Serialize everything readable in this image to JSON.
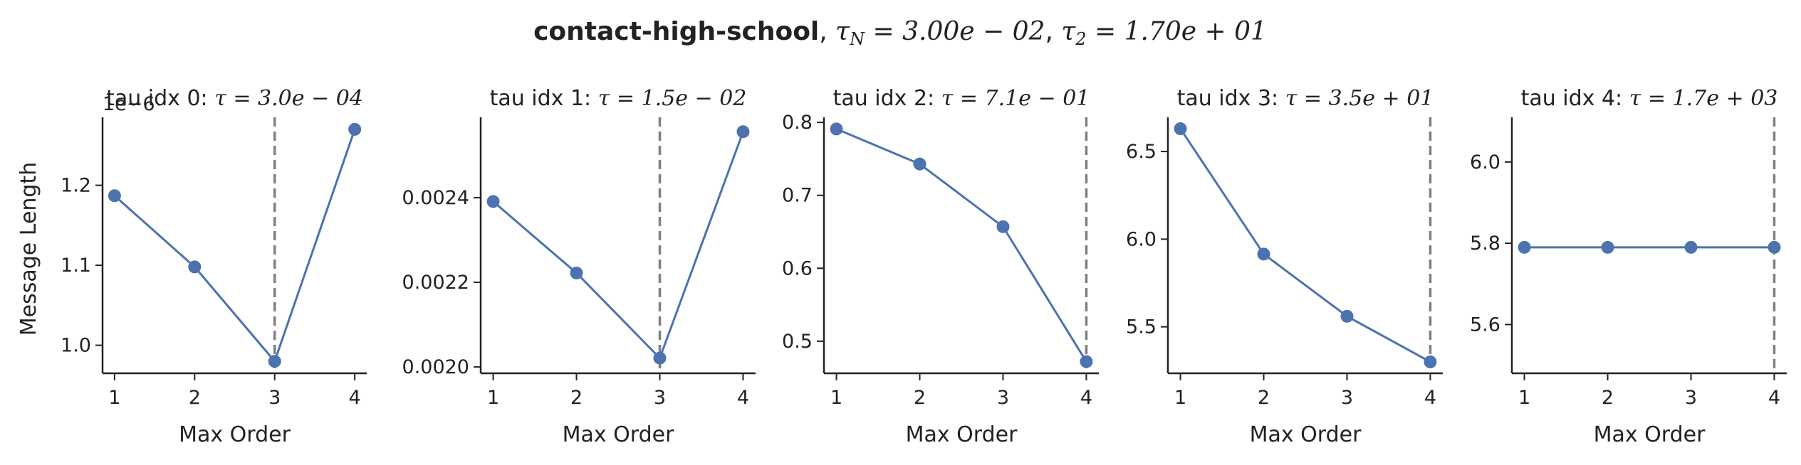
{
  "figure": {
    "suptitle_prefix": "contact-high-school",
    "suptitle_tail": {
      "sep1": ", ",
      "tauN_symbol": "τ",
      "tauN_sub": "N",
      "tauN_expr": " = 3.00e − 02",
      "sep2": ", ",
      "tau2_symbol": "τ",
      "tau2_sub": "2",
      "tau2_expr": " = 1.70e + 01"
    },
    "series_color": "#4c72b0",
    "vline_color": "#808080",
    "axis_color": "#222222"
  },
  "chart_data": [
    {
      "type": "line",
      "title_prefix": "tau idx 0: ",
      "title_tau": "τ",
      "title_value": " = 3.0e − 04",
      "xlabel": "Max Order",
      "ylabel": "Message Length",
      "offset_label": "1e−6",
      "x": [
        1,
        2,
        3,
        4
      ],
      "y": [
        1.187,
        1.098,
        0.98,
        1.27
      ],
      "xlim": [
        0.85,
        4.15
      ],
      "ylim": [
        0.965,
        1.285
      ],
      "yticks": [
        1.0,
        1.1,
        1.2
      ],
      "ytick_labels": [
        "1.0",
        "1.1",
        "1.2"
      ],
      "xticks": [
        1,
        2,
        3,
        4
      ],
      "xtick_labels": [
        "1",
        "2",
        "3",
        "4"
      ],
      "vline_x": 3,
      "grid": false,
      "marker": "circle"
    },
    {
      "type": "line",
      "title_prefix": "tau idx 1: ",
      "title_tau": "τ",
      "title_value": " = 1.5e − 02",
      "xlabel": "Max Order",
      "ylabel": "",
      "offset_label": "",
      "x": [
        1,
        2,
        3,
        4
      ],
      "y": [
        0.002391,
        0.002222,
        0.002021,
        0.002556
      ],
      "xlim": [
        0.85,
        4.15
      ],
      "ylim": [
        0.001985,
        0.00259
      ],
      "yticks": [
        0.002,
        0.0022,
        0.0024
      ],
      "ytick_labels": [
        "0.0020",
        "0.0022",
        "0.0024"
      ],
      "xticks": [
        1,
        2,
        3,
        4
      ],
      "xtick_labels": [
        "1",
        "2",
        "3",
        "4"
      ],
      "vline_x": 3,
      "grid": false,
      "marker": "circle"
    },
    {
      "type": "line",
      "title_prefix": "tau idx 2: ",
      "title_tau": "τ",
      "title_value": " = 7.1e − 01",
      "xlabel": "Max Order",
      "ylabel": "",
      "offset_label": "",
      "x": [
        1,
        2,
        3,
        4
      ],
      "y": [
        0.791,
        0.743,
        0.657,
        0.472
      ],
      "xlim": [
        0.85,
        4.15
      ],
      "ylim": [
        0.456,
        0.807
      ],
      "yticks": [
        0.5,
        0.6,
        0.7,
        0.8
      ],
      "ytick_labels": [
        "0.5",
        "0.6",
        "0.7",
        "0.8"
      ],
      "xticks": [
        1,
        2,
        3,
        4
      ],
      "xtick_labels": [
        "1",
        "2",
        "3",
        "4"
      ],
      "vline_x": 4,
      "grid": false,
      "marker": "circle"
    },
    {
      "type": "line",
      "title_prefix": "tau idx 3: ",
      "title_tau": "τ",
      "title_value": " = 3.5e + 01",
      "xlabel": "Max Order",
      "ylabel": "",
      "offset_label": "",
      "x": [
        1,
        2,
        3,
        4
      ],
      "y": [
        6.63,
        5.915,
        5.56,
        5.3
      ],
      "xlim": [
        0.85,
        4.15
      ],
      "ylim": [
        5.235,
        6.695
      ],
      "yticks": [
        5.5,
        6.0,
        6.5
      ],
      "ytick_labels": [
        "5.5",
        "6.0",
        "6.5"
      ],
      "xticks": [
        1,
        2,
        3,
        4
      ],
      "xtick_labels": [
        "1",
        "2",
        "3",
        "4"
      ],
      "vline_x": 4,
      "grid": false,
      "marker": "circle"
    },
    {
      "type": "line",
      "title_prefix": "tau idx 4: ",
      "title_tau": "τ",
      "title_value": " = 1.7e + 03",
      "xlabel": "Max Order",
      "ylabel": "",
      "offset_label": "",
      "x": [
        1,
        2,
        3,
        4
      ],
      "y": [
        5.79,
        5.79,
        5.79,
        5.79
      ],
      "xlim": [
        0.85,
        4.15
      ],
      "ylim": [
        5.48,
        6.11
      ],
      "yticks": [
        5.6,
        5.8,
        6.0
      ],
      "ytick_labels": [
        "5.6",
        "5.8",
        "6.0"
      ],
      "xticks": [
        1,
        2,
        3,
        4
      ],
      "xtick_labels": [
        "1",
        "2",
        "3",
        "4"
      ],
      "vline_x": 4,
      "grid": false,
      "marker": "circle"
    }
  ]
}
